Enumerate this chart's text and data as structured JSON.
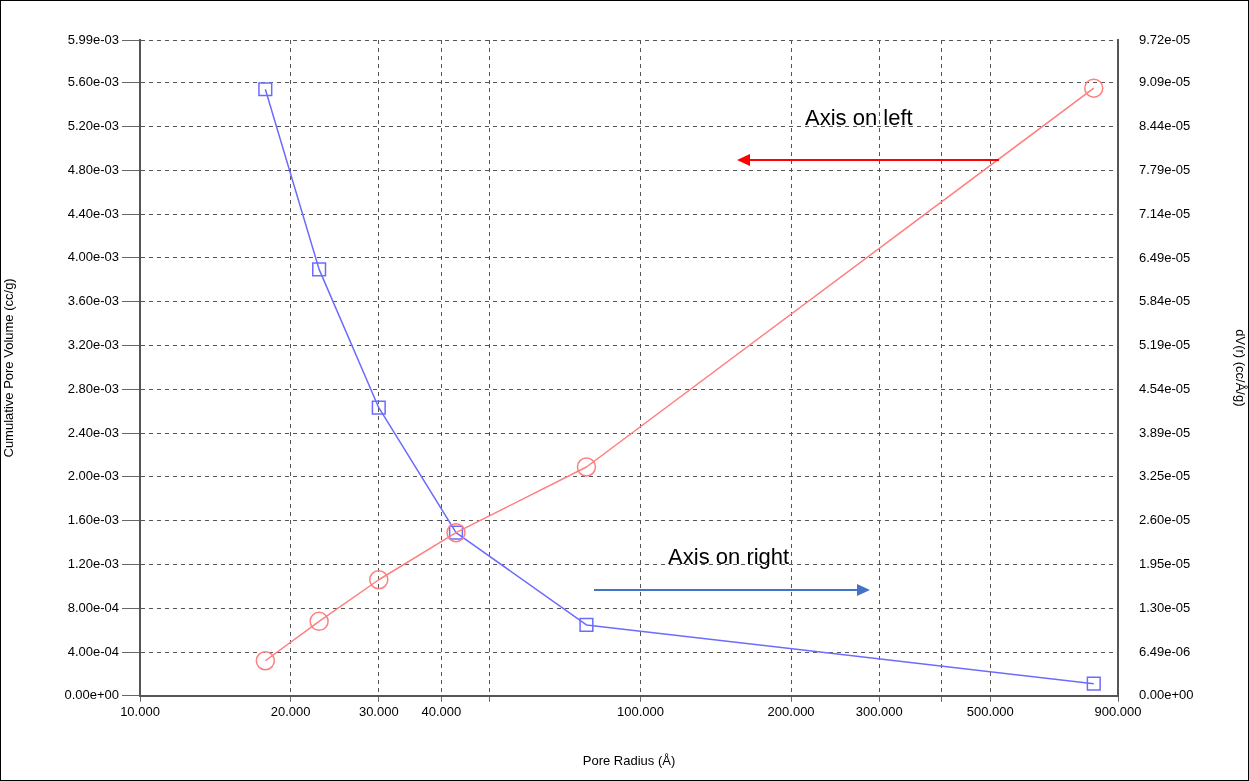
{
  "chart_data": {
    "type": "line",
    "xlabel": "Pore Radius (Å)",
    "ylabel": "Cumulative Pore Volume (cc/g)",
    "y2label": "dV(r) (cc/Å/g)",
    "log": "x",
    "grid": true,
    "legend": false,
    "line_style": "solid",
    "xlim": [
      10,
      900
    ],
    "xticks": [
      {
        "value": 10,
        "label": "10.000"
      },
      {
        "value": 20,
        "label": "20.000"
      },
      {
        "value": 30,
        "label": "30.000"
      },
      {
        "value": 40,
        "label": "40.000"
      },
      {
        "value": 50,
        "label": null
      },
      {
        "value": 100,
        "label": "100.000"
      },
      {
        "value": 200,
        "label": "200.000"
      },
      {
        "value": 300,
        "label": "300.000"
      },
      {
        "value": 400,
        "label": null
      },
      {
        "value": 500,
        "label": "500.000"
      },
      {
        "value": 900,
        "label": "900.000"
      }
    ],
    "ylim": [
      0,
      0.00599
    ],
    "yticks": [
      {
        "value": 0,
        "label": "0.00e+00"
      },
      {
        "value": 0.0004,
        "label": "4.00e-04"
      },
      {
        "value": 0.0008,
        "label": "8.00e-04"
      },
      {
        "value": 0.0012,
        "label": "1.20e-03"
      },
      {
        "value": 0.0016,
        "label": "1.60e-03"
      },
      {
        "value": 0.002,
        "label": "2.00e-03"
      },
      {
        "value": 0.0024,
        "label": "2.40e-03"
      },
      {
        "value": 0.0028,
        "label": "2.80e-03"
      },
      {
        "value": 0.0032,
        "label": "3.20e-03"
      },
      {
        "value": 0.0036,
        "label": "3.60e-03"
      },
      {
        "value": 0.004,
        "label": "4.00e-03"
      },
      {
        "value": 0.0044,
        "label": "4.40e-03"
      },
      {
        "value": 0.0048,
        "label": "4.80e-03"
      },
      {
        "value": 0.0052,
        "label": "5.20e-03"
      },
      {
        "value": 0.0056,
        "label": "5.60e-03"
      },
      {
        "value": 0.00599,
        "label": "5.99e-03"
      }
    ],
    "y2lim": [
      0,
      9.72e-05
    ],
    "y2ticks": [
      {
        "value": 0,
        "label": "0.00e+00"
      },
      {
        "value": 6.49e-06,
        "label": "6.49e-06"
      },
      {
        "value": 1.3e-05,
        "label": "1.30e-05"
      },
      {
        "value": 1.95e-05,
        "label": "1.95e-05"
      },
      {
        "value": 2.6e-05,
        "label": "2.60e-05"
      },
      {
        "value": 3.25e-05,
        "label": "3.25e-05"
      },
      {
        "value": 3.89e-05,
        "label": "3.89e-05"
      },
      {
        "value": 4.54e-05,
        "label": "4.54e-05"
      },
      {
        "value": 5.19e-05,
        "label": "5.19e-05"
      },
      {
        "value": 5.84e-05,
        "label": "5.84e-05"
      },
      {
        "value": 6.49e-05,
        "label": "6.49e-05"
      },
      {
        "value": 7.14e-05,
        "label": "7.14e-05"
      },
      {
        "value": 7.79e-05,
        "label": "7.79e-05"
      },
      {
        "value": 8.44e-05,
        "label": "8.44e-05"
      },
      {
        "value": 9.09e-05,
        "label": "9.09e-05"
      },
      {
        "value": 9.72e-05,
        "label": "9.72e-05"
      }
    ],
    "x": [
      17.8,
      22.8,
      30,
      42.8,
      78,
      805
    ],
    "series": [
      {
        "color": "#ff7f7f",
        "marker": "circle",
        "values": [
          0.00032,
          0.00068,
          0.00106,
          0.00149,
          0.00209,
          0.00555
        ]
      },
      {
        "color": "#6b6bff",
        "marker": "square",
        "axis": "y2",
        "values": [
          8.99e-05,
          6.32e-05,
          4.27e-05,
          2.42e-05,
          1.05e-05,
          1.8e-06
        ]
      }
    ],
    "annotations": [
      "Axis on left",
      "Axis on right"
    ]
  }
}
